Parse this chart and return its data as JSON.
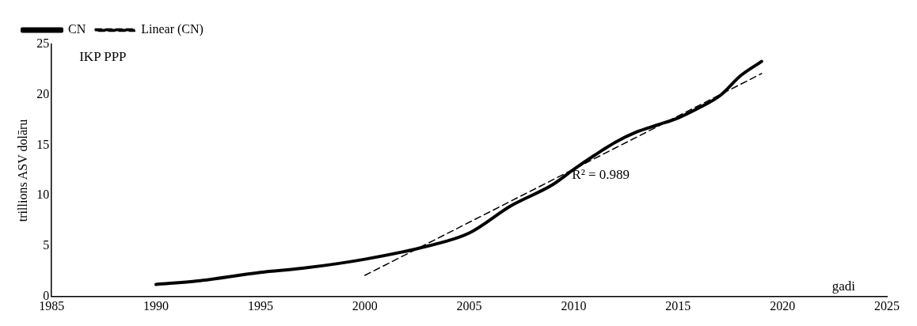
{
  "chart_data": {
    "type": "line",
    "title": "IKP PPP",
    "xlabel": "gadi",
    "ylabel": "trillions ASV dolāru",
    "xlim": [
      1985,
      2025
    ],
    "xticks": [
      1985,
      1990,
      1995,
      2000,
      2005,
      2010,
      2015,
      2020,
      2025
    ],
    "ylim": [
      0,
      25
    ],
    "yticks": [
      0,
      5,
      10,
      15,
      20,
      25
    ],
    "grid": false,
    "legend": "top left",
    "marker": "none",
    "annotations": [
      "R² = 0.989"
    ],
    "series": [
      {
        "name": "CN",
        "color": "#000000",
        "line_style": "solid",
        "x": [
          1990,
          1992,
          1995,
          1997,
          2000,
          2003,
          2005,
          2007,
          2009,
          2010,
          2011,
          2012,
          2013,
          2014,
          2015,
          2016,
          2017,
          2018,
          2019
        ],
        "values": [
          1.2,
          1.55,
          2.4,
          2.8,
          3.7,
          5.0,
          6.3,
          9.0,
          11.1,
          12.6,
          14.0,
          15.3,
          16.3,
          17.0,
          17.7,
          18.7,
          19.9,
          21.9,
          23.3
        ]
      },
      {
        "name": "Linear (CN)",
        "color": "#000000",
        "line_style": "dashed",
        "x": [
          2000,
          2019
        ],
        "values": [
          2.1,
          22.1
        ]
      }
    ]
  }
}
